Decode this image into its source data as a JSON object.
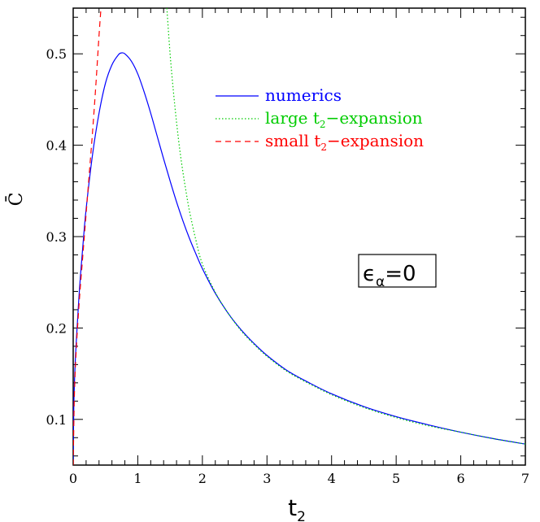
{
  "chart_data": {
    "type": "line",
    "title": "",
    "xlabel": "t",
    "xlabel_sub": "2",
    "ylabel": "C̄",
    "xlim": [
      0,
      7
    ],
    "ylim": [
      0.05,
      0.55
    ],
    "grid": false,
    "legend_position": "top-right",
    "x_ticks": [
      0,
      1,
      2,
      3,
      4,
      5,
      6,
      7
    ],
    "x_tick_labels": [
      "0",
      "1",
      "2",
      "3",
      "4",
      "5",
      "6",
      "7"
    ],
    "y_ticks": [
      0.1,
      0.2,
      0.3,
      0.4,
      0.5
    ],
    "y_tick_labels": [
      "0.1",
      "0.2",
      "0.3",
      "0.4",
      "0.5"
    ],
    "series": [
      {
        "name": "numerics",
        "color": "#0000ff",
        "dash": "solid",
        "x": [
          0.0,
          0.01,
          0.03,
          0.06,
          0.1,
          0.15,
          0.2,
          0.3,
          0.4,
          0.5,
          0.6,
          0.7,
          0.75,
          0.8,
          0.9,
          1.0,
          1.1,
          1.2,
          1.3,
          1.4,
          1.5,
          1.6,
          1.7,
          1.8,
          1.9,
          2.0,
          2.2,
          2.4,
          2.6,
          2.8,
          3.0,
          3.3,
          3.6,
          4.0,
          4.5,
          5.0,
          5.5,
          6.0,
          6.5,
          7.0
        ],
        "y": [
          0.055,
          0.115,
          0.16,
          0.2,
          0.245,
          0.29,
          0.33,
          0.39,
          0.435,
          0.468,
          0.488,
          0.499,
          0.501,
          0.5,
          0.492,
          0.478,
          0.458,
          0.435,
          0.41,
          0.385,
          0.361,
          0.338,
          0.317,
          0.298,
          0.281,
          0.265,
          0.238,
          0.216,
          0.198,
          0.183,
          0.17,
          0.154,
          0.142,
          0.128,
          0.114,
          0.103,
          0.094,
          0.086,
          0.079,
          0.073
        ]
      },
      {
        "name": "large t2-expansion",
        "name_text": "large t",
        "name_sub": "2",
        "name_suffix": "−expansion",
        "color": "#00cc00",
        "dash": "dotted",
        "x": [
          1.45,
          1.5,
          1.55,
          1.6,
          1.65,
          1.7,
          1.75,
          1.8,
          1.9,
          2.0,
          2.2,
          2.4,
          2.6,
          2.8,
          3.0,
          3.3,
          3.6,
          4.0,
          4.5,
          5.0,
          5.5,
          6.0,
          6.5,
          7.0
        ],
        "y": [
          0.55,
          0.5,
          0.46,
          0.425,
          0.395,
          0.37,
          0.348,
          0.328,
          0.296,
          0.27,
          0.239,
          0.216,
          0.197,
          0.182,
          0.169,
          0.153,
          0.141,
          0.127,
          0.113,
          0.102,
          0.093,
          0.086,
          0.079,
          0.073
        ]
      },
      {
        "name": "small t2-expansion",
        "name_text": "small t",
        "name_sub": "2",
        "name_suffix": "−expansion",
        "color": "#ff0000",
        "dash": "dashed",
        "x": [
          0.0,
          0.02,
          0.05,
          0.1,
          0.15,
          0.2,
          0.25,
          0.3,
          0.35,
          0.4,
          0.43
        ],
        "y": [
          0.05,
          0.13,
          0.18,
          0.235,
          0.28,
          0.325,
          0.37,
          0.415,
          0.465,
          0.52,
          0.55
        ]
      }
    ],
    "annotation": {
      "symbol": "ϵ",
      "sub": "α",
      "text": "=0"
    }
  }
}
